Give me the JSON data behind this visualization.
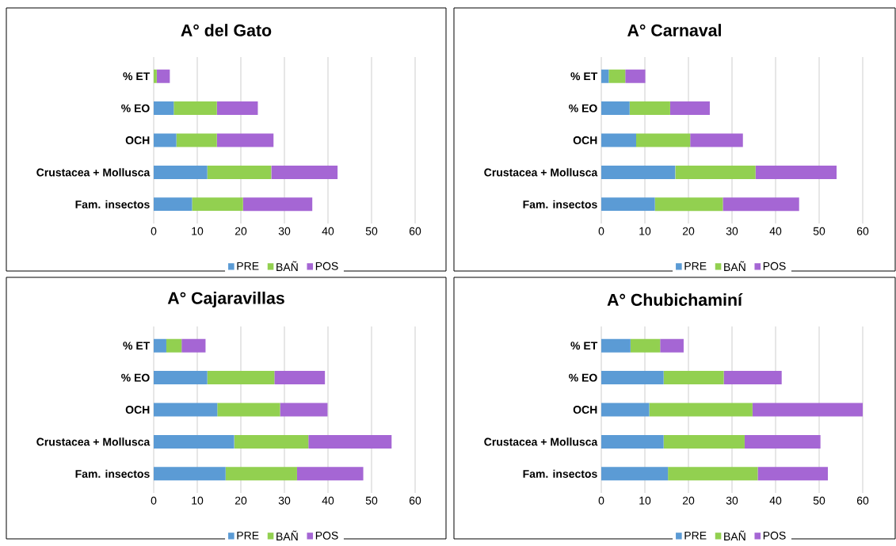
{
  "chart_data": [
    {
      "type": "bar",
      "orientation": "horizontal",
      "stacked": true,
      "title": "A° del Gato",
      "categories": [
        "% ET",
        "% EO",
        "OCH",
        "Crustacea + Mollusca",
        "Fam. insectos"
      ],
      "xlim": [
        0,
        60
      ],
      "xticks": [
        0,
        10,
        20,
        30,
        40,
        50,
        60
      ],
      "grid": "x",
      "legend": "bottom",
      "series": [
        {
          "name": "PRE",
          "color": "#5b9bd5",
          "values": [
            0,
            4.6,
            5.2,
            12.3,
            8.8
          ]
        },
        {
          "name": "BAÑ",
          "color": "#92d050",
          "values": [
            0.7,
            9.9,
            9.3,
            14.7,
            11.7
          ]
        },
        {
          "name": "POS",
          "color": "#a566d4",
          "values": [
            3.0,
            9.4,
            13.0,
            15.2,
            15.9
          ]
        }
      ]
    },
    {
      "type": "bar",
      "orientation": "horizontal",
      "stacked": true,
      "title": "A° Carnaval",
      "categories": [
        "% ET",
        "% EO",
        "OCH",
        "Crustacea + Mollusca",
        "Fam. insectos"
      ],
      "xlim": [
        0,
        60
      ],
      "xticks": [
        0,
        10,
        20,
        30,
        40,
        50,
        60
      ],
      "grid": "x",
      "legend": "bottom",
      "series": [
        {
          "name": "PRE",
          "color": "#5b9bd5",
          "values": [
            1.7,
            6.5,
            8.0,
            17.0,
            12.3
          ]
        },
        {
          "name": "BAÑ",
          "color": "#92d050",
          "values": [
            3.8,
            9.3,
            12.4,
            18.4,
            15.6
          ]
        },
        {
          "name": "POS",
          "color": "#a566d4",
          "values": [
            4.6,
            9.1,
            12.1,
            18.6,
            17.5
          ]
        }
      ]
    },
    {
      "type": "bar",
      "orientation": "horizontal",
      "stacked": true,
      "title": "A° Cajaravillas",
      "categories": [
        "% ET",
        "% EO",
        "OCH",
        "Crustacea + Mollusca",
        "Fam. insectos"
      ],
      "xlim": [
        0,
        60
      ],
      "xticks": [
        0,
        10,
        20,
        30,
        40,
        50,
        60
      ],
      "grid": "x",
      "legend": "bottom",
      "series": [
        {
          "name": "PRE",
          "color": "#5b9bd5",
          "values": [
            2.9,
            12.3,
            14.6,
            18.5,
            16.5
          ]
        },
        {
          "name": "BAÑ",
          "color": "#92d050",
          "values": [
            3.5,
            15.4,
            14.4,
            17.0,
            16.4
          ]
        },
        {
          "name": "POS",
          "color": "#a566d4",
          "values": [
            5.5,
            11.6,
            10.9,
            19.1,
            15.2
          ]
        }
      ]
    },
    {
      "type": "bar",
      "orientation": "horizontal",
      "stacked": true,
      "title": "A° Chubichaminí",
      "categories": [
        "% ET",
        "% EO",
        "OCH",
        "Crustacea + Mollusca",
        "Fam. insectos"
      ],
      "xlim": [
        0,
        60
      ],
      "xticks": [
        0,
        10,
        20,
        30,
        40,
        50,
        60
      ],
      "grid": "x",
      "legend": "bottom",
      "series": [
        {
          "name": "PRE",
          "color": "#5b9bd5",
          "values": [
            6.7,
            14.3,
            11.0,
            14.3,
            15.3
          ]
        },
        {
          "name": "BAÑ",
          "color": "#92d050",
          "values": [
            6.8,
            13.8,
            23.7,
            18.6,
            20.6
          ]
        },
        {
          "name": "POS",
          "color": "#a566d4",
          "values": [
            5.4,
            13.3,
            25.3,
            17.4,
            16.1
          ]
        }
      ]
    }
  ]
}
